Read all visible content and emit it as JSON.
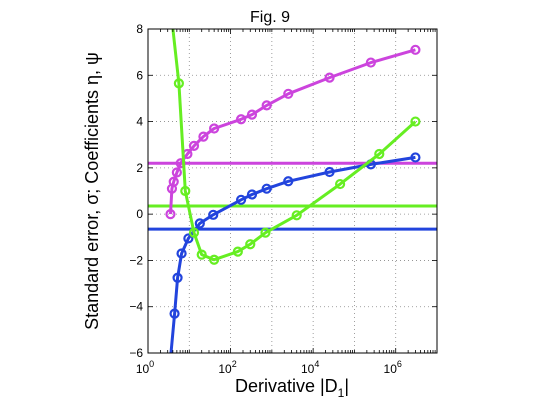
{
  "chart_data": {
    "type": "line",
    "title": "Fig. 9",
    "xlabel_main": "Derivative |D",
    "xlabel_sub": "1",
    "xlabel_end": "|",
    "ylabel": "Standard error, σ; Coefficients η, ψ",
    "x_scale": "log",
    "xlim": [
      1,
      10000000
    ],
    "ylim": [
      -6,
      8
    ],
    "grid": true,
    "x_ticks": [
      {
        "value": 1,
        "base": "10",
        "exp": "0"
      },
      {
        "value": 100,
        "base": "10",
        "exp": "2"
      },
      {
        "value": 10000,
        "base": "10",
        "exp": "4"
      },
      {
        "value": 1000000,
        "base": "10",
        "exp": "6"
      }
    ],
    "y_ticks": [
      {
        "value": -6,
        "label": "−6"
      },
      {
        "value": -4,
        "label": "−4"
      },
      {
        "value": -2,
        "label": "−2"
      },
      {
        "value": 0,
        "label": "0"
      },
      {
        "value": 2,
        "label": "2"
      },
      {
        "value": 4,
        "label": "4"
      },
      {
        "value": 6,
        "label": "6"
      },
      {
        "value": 8,
        "label": "8"
      }
    ],
    "hlines": [
      {
        "y": 2.2,
        "color": "#cc44dd"
      },
      {
        "y": 0.35,
        "color": "#66ee22"
      },
      {
        "y": -0.65,
        "color": "#2244dd"
      }
    ],
    "series": [
      {
        "color": "#cc44dd",
        "x": [
          3.5,
          3.8,
          4.2,
          5.0,
          6.2,
          9.0,
          13,
          22,
          40,
          180,
          330,
          750,
          2500,
          25000,
          250000,
          3000000
        ],
        "y": [
          0.0,
          1.1,
          1.4,
          1.8,
          2.2,
          2.6,
          2.95,
          3.35,
          3.7,
          4.1,
          4.3,
          4.7,
          5.2,
          5.9,
          6.55,
          7.1
        ],
        "markers": true,
        "line_extra": {
          "x": [
            3.5
          ],
          "y": [
            0.0
          ]
        }
      },
      {
        "color": "#2244dd",
        "x": [
          3.6,
          4.4,
          5.2,
          6.5,
          9.5,
          18,
          38,
          180,
          330,
          750,
          2500,
          25000,
          250000,
          3000000
        ],
        "y": [
          -6.0,
          -4.3,
          -2.75,
          -1.7,
          -1.05,
          -0.4,
          -0.03,
          0.62,
          0.85,
          1.1,
          1.42,
          1.82,
          2.15,
          2.45
        ],
        "markers_from": 1
      },
      {
        "color": "#66ee22",
        "x": [
          4.0,
          5.6,
          8.0,
          13,
          20,
          40,
          150,
          300,
          700,
          4000,
          45000,
          400000,
          3000000
        ],
        "y": [
          8.0,
          5.65,
          1.0,
          -0.8,
          -1.75,
          -1.97,
          -1.62,
          -1.3,
          -0.8,
          -0.05,
          1.3,
          2.6,
          4.0
        ],
        "markers_from": 1
      }
    ]
  }
}
